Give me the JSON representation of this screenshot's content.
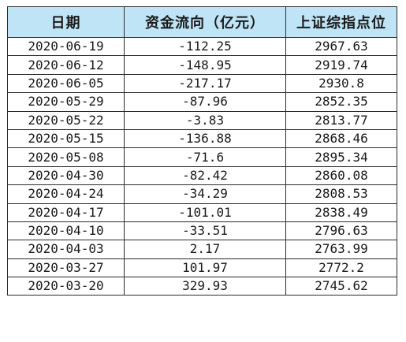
{
  "table": {
    "headers": [
      "日期",
      "资金流向（亿元）",
      "上证综指点位"
    ],
    "rows": [
      [
        "2020-06-19",
        "-112.25",
        "2967.63"
      ],
      [
        "2020-06-12",
        "-148.95",
        "2919.74"
      ],
      [
        "2020-06-05",
        "-217.17",
        "2930.8"
      ],
      [
        "2020-05-29",
        "-87.96",
        "2852.35"
      ],
      [
        "2020-05-22",
        "-3.83",
        "2813.77"
      ],
      [
        "2020-05-15",
        "-136.88",
        "2868.46"
      ],
      [
        "2020-05-08",
        "-71.6",
        "2895.34"
      ],
      [
        "2020-04-30",
        "-82.42",
        "2860.08"
      ],
      [
        "2020-04-24",
        "-34.29",
        "2808.53"
      ],
      [
        "2020-04-17",
        "-101.01",
        "2838.49"
      ],
      [
        "2020-04-10",
        "-33.51",
        "2796.63"
      ],
      [
        "2020-04-03",
        "2.17",
        "2763.99"
      ],
      [
        "2020-03-27",
        "101.97",
        "2772.2"
      ],
      [
        "2020-03-20",
        "329.93",
        "2745.62"
      ]
    ]
  },
  "colors": {
    "header_background": "#bfe4f6",
    "border": "#2b2b2b",
    "text": "#1a1a1a"
  }
}
